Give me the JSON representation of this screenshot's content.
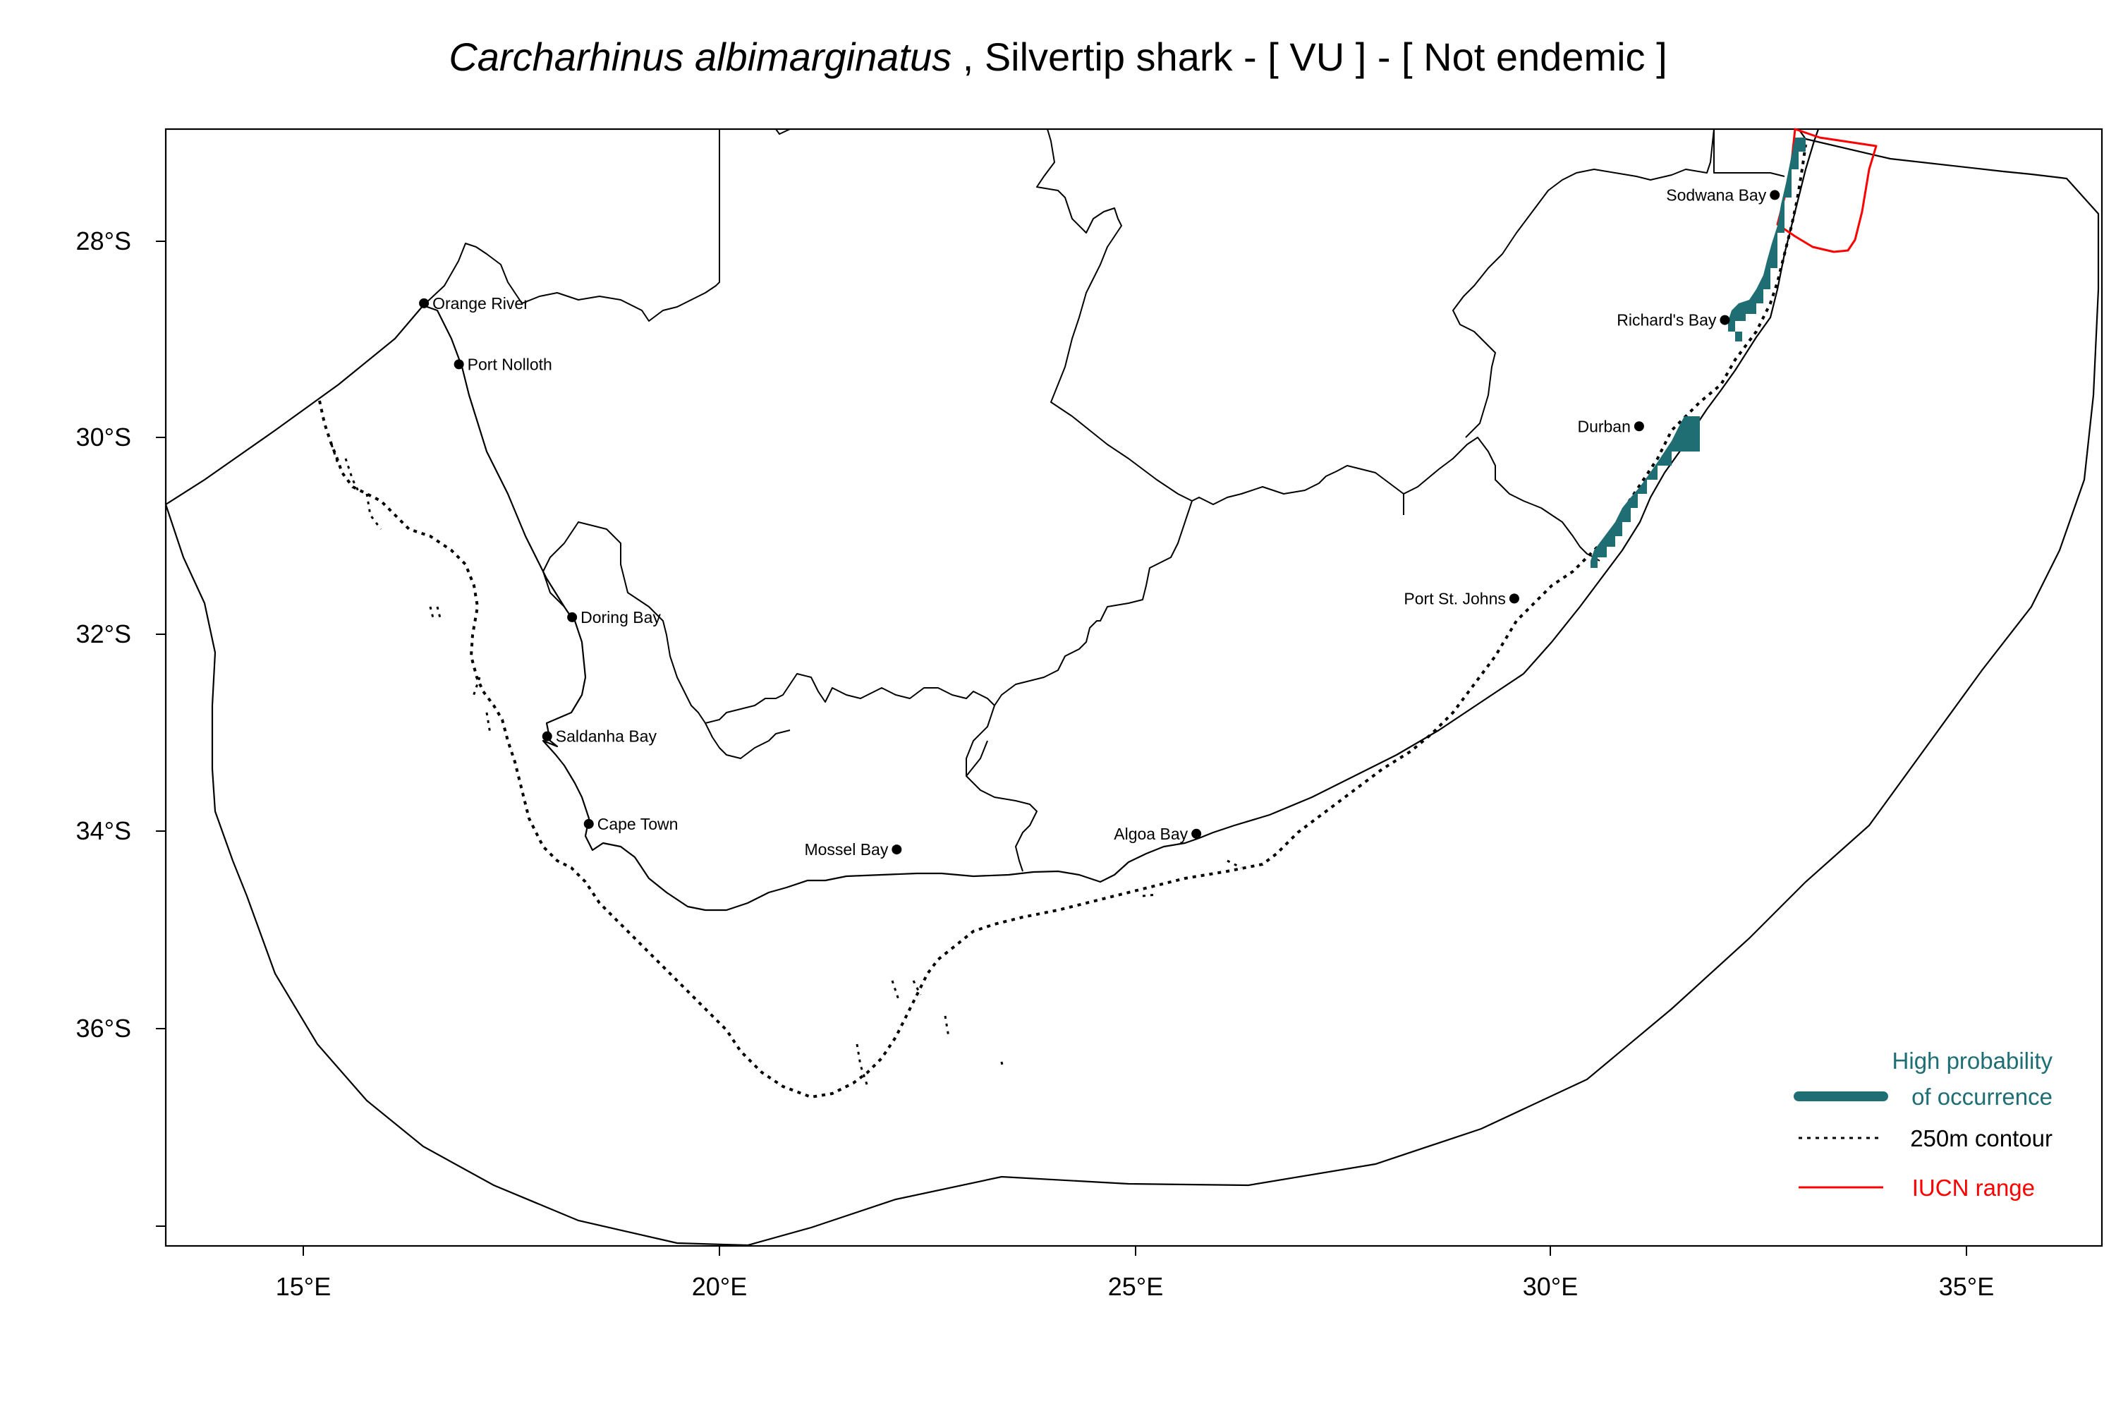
{
  "title": {
    "species": "Carcharhinus albimarginatus",
    "rest": " , Silvertip shark  - [ VU ] - [ Not endemic ]"
  },
  "axes": {
    "x_ticks": [
      "15°E",
      "20°E",
      "25°E",
      "30°E",
      "35°E"
    ],
    "y_ticks": [
      "28°S",
      "30°S",
      "32°S",
      "34°S",
      "36°S"
    ]
  },
  "places": [
    {
      "name": "Orange River",
      "lon": 16.45,
      "lat": -28.63,
      "label_side": "right"
    },
    {
      "name": "Port Nolloth",
      "lon": 16.87,
      "lat": -29.25,
      "label_side": "right"
    },
    {
      "name": "Doring Bay",
      "lon": 18.23,
      "lat": -31.82,
      "label_side": "right"
    },
    {
      "name": "Saldanha Bay",
      "lon": 17.93,
      "lat": -33.03,
      "label_side": "right"
    },
    {
      "name": "Cape Town",
      "lon": 18.43,
      "lat": -33.92,
      "label_side": "right"
    },
    {
      "name": "Mossel Bay",
      "lon": 22.13,
      "lat": -34.18,
      "label_side": "left"
    },
    {
      "name": "Algoa Bay",
      "lon": 25.73,
      "lat": -34.02,
      "label_side": "left"
    },
    {
      "name": "Port St. Johns",
      "lon": 29.55,
      "lat": -31.63,
      "label_side": "left"
    },
    {
      "name": "Durban",
      "lon": 31.05,
      "lat": -29.88,
      "label_side": "left"
    },
    {
      "name": "Richard's Bay",
      "lon": 32.08,
      "lat": -28.8,
      "label_side": "left"
    },
    {
      "name": "Sodwana Bay",
      "lon": 32.68,
      "lat": -27.53,
      "label_side": "left"
    }
  ],
  "legend": {
    "occurrence_line1": "High probability",
    "occurrence_line2": "of occurrence",
    "contour": "250m contour",
    "iucn": "IUCN range"
  },
  "colors": {
    "occurrence": "#1e6e74",
    "iucn": "#ff0000",
    "line": "#000000"
  }
}
